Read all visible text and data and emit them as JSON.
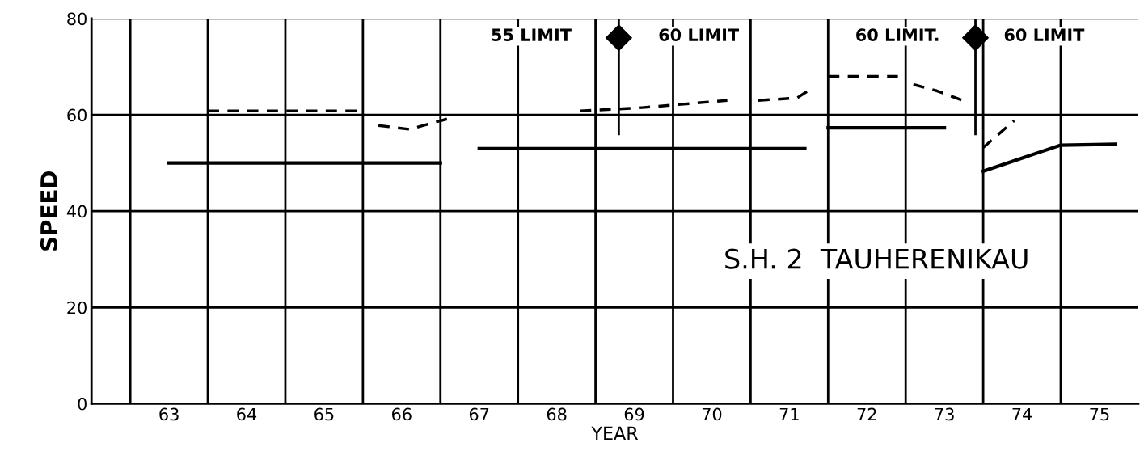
{
  "chart_data": {
    "type": "line",
    "title": "S.H. 2  TAUHERENIKAU",
    "xlabel": "YEAR",
    "ylabel": "SPEED",
    "xlim": [
      62,
      75.5
    ],
    "ylim": [
      0,
      80
    ],
    "xticks": [
      {
        "value": 62.5,
        "label": null
      },
      63,
      {
        "value": 63.5,
        "label": null
      },
      64,
      {
        "value": 64.5,
        "label": null
      },
      65,
      {
        "value": 65.5,
        "label": null
      },
      66,
      {
        "value": 66.5,
        "label": null
      },
      67,
      {
        "value": 67.5,
        "label": null
      },
      68,
      {
        "value": 68.5,
        "label": null
      },
      69,
      {
        "value": 69.5,
        "label": null
      },
      70,
      {
        "value": 70.5,
        "label": null
      },
      71,
      {
        "value": 71.5,
        "label": null
      },
      72,
      {
        "value": 72.5,
        "label": null
      },
      73,
      {
        "value": 73.5,
        "label": null
      },
      74,
      {
        "value": 74.5,
        "label": null
      },
      75
    ],
    "yticks": [
      0,
      20,
      40,
      60,
      80
    ],
    "grid": true,
    "legend": false,
    "marker": "none",
    "series": [
      {
        "color": "#000000",
        "line_style": "dashed",
        "x": [
          63.5,
          65.5,
          65.6,
          65.7,
          66.1,
          66.6,
          66.7,
          68.3,
          69.1,
          70.2,
          70.4,
          70.6,
          71.1,
          71.3,
          71.4,
          71.5,
          72.4,
          72.5,
          72.6,
          72.9,
          73.3,
          73.4,
          73.5,
          73.9
        ],
        "values": [
          60.8,
          60.8,
          null,
          57.8,
          57,
          59.2,
          null,
          60.8,
          61.5,
          63,
          null,
          63,
          63.5,
          65.6,
          null,
          68,
          68,
          null,
          66.3,
          65,
          62.6,
          null,
          53.2,
          58.8
        ]
      },
      {
        "color": "#000000",
        "line_style": "solid",
        "x": [
          63.0,
          66.5,
          66.7,
          67.0,
          71.2,
          71.3,
          71.5,
          73.0,
          73.2,
          73.5,
          74.5,
          75.2
        ],
        "values": [
          50,
          50,
          null,
          53,
          53,
          null,
          57.3,
          57.3,
          null,
          48.3,
          53.7,
          53.9
        ]
      }
    ],
    "ref_lines": [
      {
        "axis": "x",
        "value": 68.8,
        "label": null,
        "color": "#000000"
      },
      {
        "axis": "x",
        "value": 73.4,
        "label": null,
        "color": "#000000"
      }
    ],
    "annotations": [
      "55 LIMIT",
      "60 LIMIT",
      "60 LIMIT.",
      "60 LIMIT"
    ]
  }
}
